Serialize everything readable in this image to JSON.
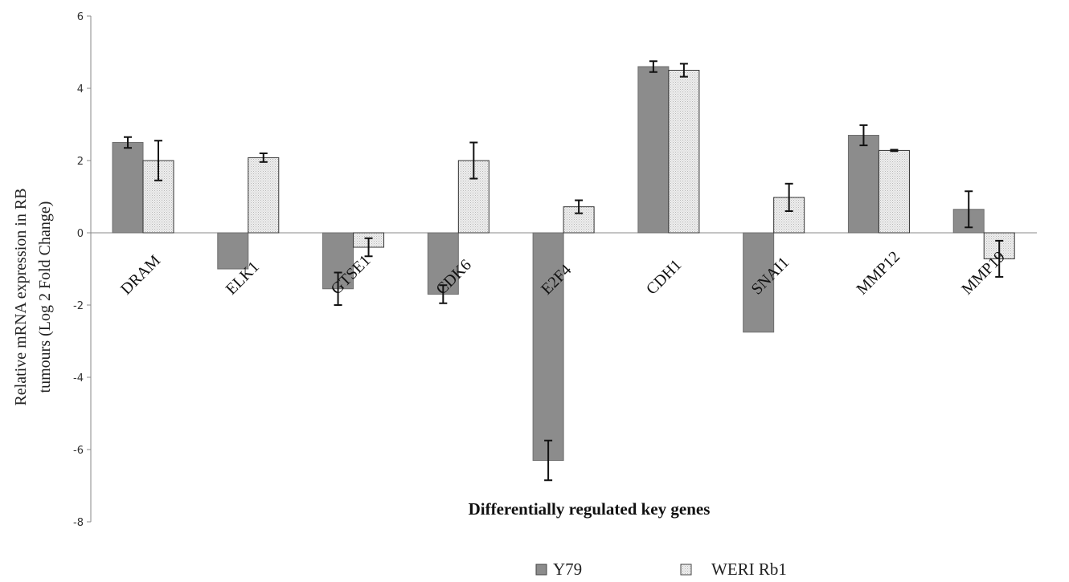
{
  "chart_data": {
    "type": "bar",
    "categories": [
      "DRAM",
      "ELK1",
      "GTSE1",
      "CDK6",
      "E2F4",
      "CDH1",
      "SNAI1",
      "MMP12",
      "MMP19"
    ],
    "series": [
      {
        "name": "Y79",
        "color": "#8c8c8c",
        "values": [
          2.5,
          -1.0,
          -1.55,
          -1.7,
          -6.3,
          4.6,
          -2.75,
          2.7,
          0.65
        ],
        "errors": [
          0.15,
          0.0,
          0.45,
          0.25,
          0.55,
          0.15,
          0.0,
          0.28,
          0.5
        ]
      },
      {
        "name": "WERI Rb1",
        "color": "#e6e6e6",
        "values": [
          2.0,
          2.08,
          -0.4,
          2.0,
          0.72,
          4.5,
          0.98,
          2.28,
          -0.72
        ],
        "errors": [
          0.55,
          0.12,
          0.25,
          0.5,
          0.18,
          0.18,
          0.38,
          0.02,
          0.5
        ]
      }
    ],
    "ylim": [
      -8,
      6
    ],
    "yticks": [
      "-8",
      "-6",
      "-4",
      "-2",
      "0",
      "2",
      "4",
      "6"
    ],
    "ylabel_line1": "Relative mRNA expression in RB",
    "ylabel_line2": "tumours (Log  2  Fold Change)",
    "xlabel": "Differentially  regulated  key genes",
    "legend": {
      "position": "bottom",
      "items": [
        "Y79",
        "WERI Rb1"
      ]
    },
    "grid": false
  }
}
